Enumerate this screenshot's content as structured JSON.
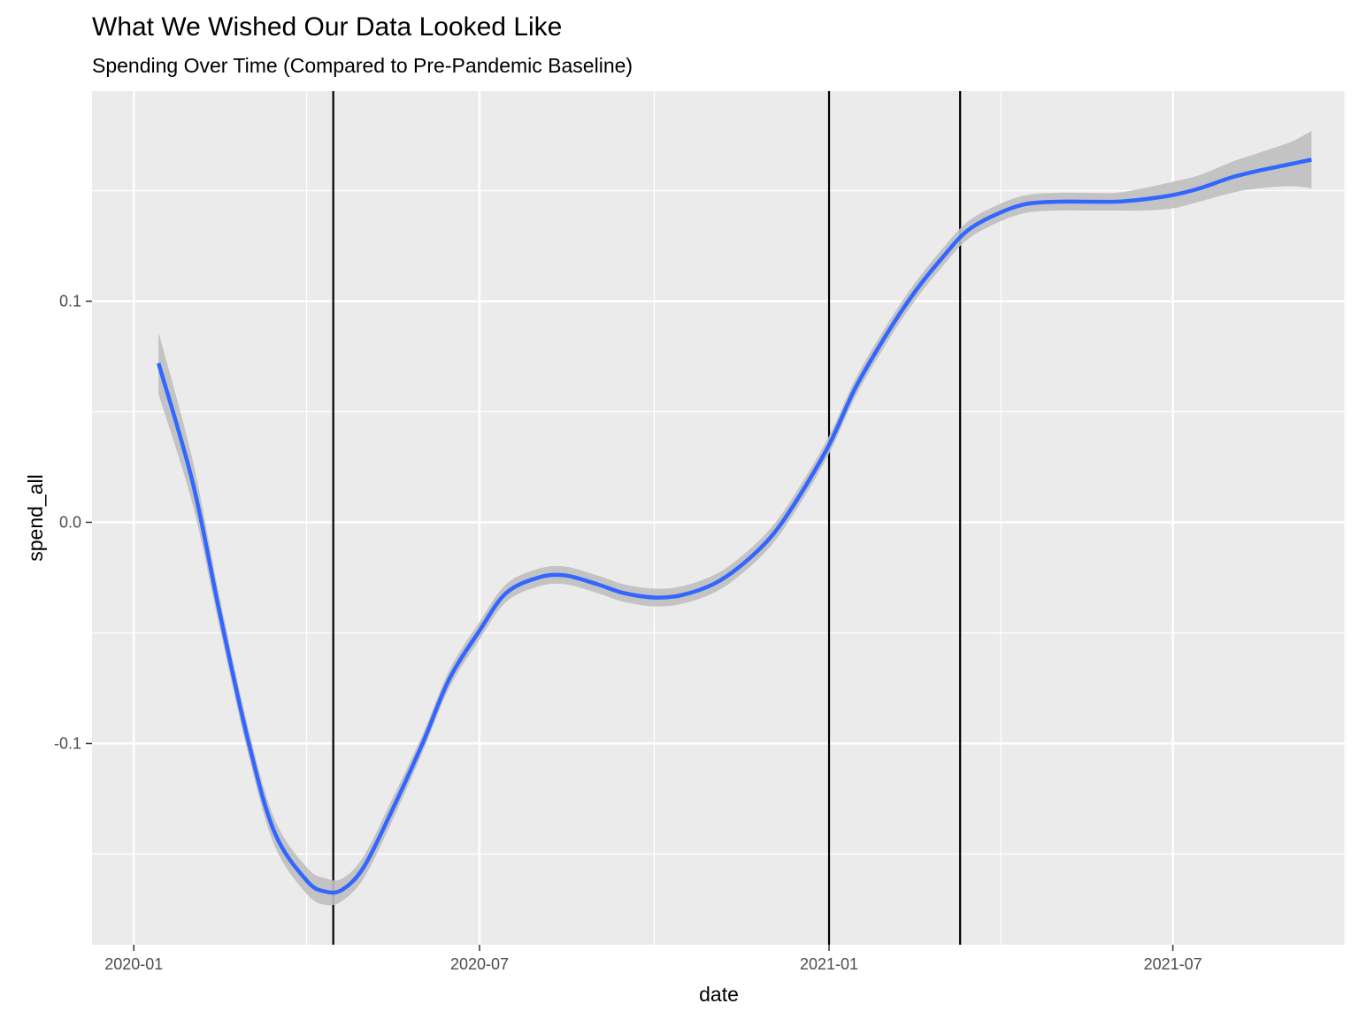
{
  "chart_data": {
    "type": "line",
    "title": "What We Wished Our Data Looked Like",
    "subtitle": "Spending Over Time (Compared to Pre-Pandemic Baseline)",
    "xlabel": "date",
    "ylabel": "spend_all",
    "x_ticks": [
      "2020-01",
      "2020-07",
      "2021-01",
      "2021-07"
    ],
    "y_ticks": [
      "-0.1",
      "0.0",
      "0.1"
    ],
    "xlim": [
      "2019-12-10",
      "2021-09-30"
    ],
    "ylim": [
      -0.191,
      0.195
    ],
    "grid": true,
    "vlines": [
      "2020-04-15",
      "2021-01-01",
      "2021-03-11"
    ],
    "smooth_color": "#3366FF",
    "ribbon_color": "#bfbfbf",
    "panel_color": "#EBEBEB",
    "series": [
      {
        "x": [
          "2020-01-14",
          "2020-02-01",
          "2020-02-15",
          "2020-03-01",
          "2020-03-15",
          "2020-04-01",
          "2020-04-11",
          "2020-04-20",
          "2020-05-01",
          "2020-05-15",
          "2020-06-01",
          "2020-06-15",
          "2020-07-01",
          "2020-07-15",
          "2020-08-01",
          "2020-08-15",
          "2020-09-01",
          "2020-09-15",
          "2020-10-01",
          "2020-10-15",
          "2020-11-01",
          "2020-11-15",
          "2020-12-01",
          "2020-12-15",
          "2021-01-01",
          "2021-01-15",
          "2021-02-01",
          "2021-02-15",
          "2021-03-01",
          "2021-03-15",
          "2021-04-01",
          "2021-04-15",
          "2021-05-01",
          "2021-05-15",
          "2021-06-01",
          "2021-06-15",
          "2021-07-01",
          "2021-07-15",
          "2021-08-01",
          "2021-08-15",
          "2021-09-01",
          "2021-09-12"
        ],
        "y": [
          0.072,
          0.018,
          -0.04,
          -0.098,
          -0.14,
          -0.162,
          -0.167,
          -0.166,
          -0.156,
          -0.132,
          -0.1,
          -0.071,
          -0.049,
          -0.032,
          -0.025,
          -0.024,
          -0.028,
          -0.032,
          -0.034,
          -0.033,
          -0.028,
          -0.02,
          -0.007,
          0.01,
          0.035,
          0.061,
          0.086,
          0.104,
          0.119,
          0.132,
          0.14,
          0.144,
          0.145,
          0.145,
          0.145,
          0.146,
          0.148,
          0.151,
          0.156,
          0.159,
          0.162,
          0.164
        ],
        "lower": [
          0.058,
          0.008,
          -0.047,
          -0.104,
          -0.146,
          -0.168,
          -0.173,
          -0.171,
          -0.161,
          -0.137,
          -0.104,
          -0.075,
          -0.053,
          -0.036,
          -0.029,
          -0.028,
          -0.032,
          -0.036,
          -0.038,
          -0.037,
          -0.032,
          -0.024,
          -0.011,
          0.006,
          0.031,
          0.057,
          0.082,
          0.1,
          0.115,
          0.128,
          0.136,
          0.14,
          0.141,
          0.141,
          0.141,
          0.141,
          0.142,
          0.145,
          0.149,
          0.151,
          0.152,
          0.151
        ],
        "upper": [
          0.086,
          0.028,
          -0.033,
          -0.092,
          -0.134,
          -0.156,
          -0.161,
          -0.161,
          -0.151,
          -0.127,
          -0.096,
          -0.067,
          -0.045,
          -0.028,
          -0.021,
          -0.02,
          -0.024,
          -0.028,
          -0.03,
          -0.029,
          -0.024,
          -0.016,
          -0.003,
          0.014,
          0.039,
          0.065,
          0.09,
          0.108,
          0.123,
          0.136,
          0.144,
          0.148,
          0.149,
          0.149,
          0.149,
          0.151,
          0.154,
          0.157,
          0.163,
          0.167,
          0.172,
          0.177
        ]
      }
    ]
  }
}
